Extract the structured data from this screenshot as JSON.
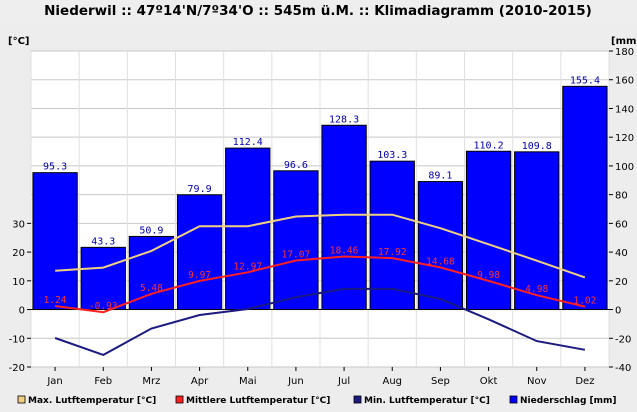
{
  "chart_data": {
    "type": "bar+line",
    "title": "Niederwil :: 47º14'N/7º34'O :: 545m ü.M. :: Klimadiagramm (2010-2015)",
    "left_unit": "[°C]",
    "right_unit": "[mm]",
    "categories": [
      "Jan",
      "Feb",
      "Mrz",
      "Apr",
      "Mai",
      "Jun",
      "Jul",
      "Aug",
      "Sep",
      "Okt",
      "Nov",
      "Dez"
    ],
    "left_axis": {
      "range": [
        -20,
        30
      ],
      "ticks": [
        -20,
        -10,
        0,
        10,
        20,
        30
      ]
    },
    "right_axis": {
      "range": [
        -40,
        180
      ],
      "ticks": [
        -40,
        -20,
        0,
        20,
        40,
        60,
        80,
        100,
        120,
        140,
        160,
        180
      ]
    },
    "grid": true,
    "series": [
      {
        "name": "Niederschlag [mm]",
        "type": "bar",
        "axis": "right",
        "color": "#0000ff",
        "values": [
          95.3,
          43.3,
          50.9,
          79.9,
          112.4,
          96.6,
          128.3,
          103.3,
          89.1,
          110.2,
          109.8,
          155.4
        ]
      },
      {
        "name": "Max. Lutftemperatur [°C]",
        "type": "line",
        "axis": "left",
        "color": "#f0d080",
        "values": [
          13.5,
          14.6,
          20.4,
          29.0,
          29.0,
          32.4,
          33.0,
          33.0,
          28.3,
          22.7,
          17.0,
          11.2
        ]
      },
      {
        "name": "Mittlere Lutftemperatur [°C]",
        "type": "line",
        "axis": "left",
        "color": "#ff2020",
        "values": [
          1.24,
          -0.93,
          5.48,
          9.97,
          12.97,
          17.07,
          18.46,
          17.92,
          14.68,
          9.98,
          4.98,
          1.02
        ],
        "labels": [
          "1.24",
          "-0.93",
          "5.48",
          "9.97",
          "12.97",
          "17.07",
          "18.46",
          "17.92",
          "14.68",
          "9.98",
          "4.98",
          "1.02"
        ]
      },
      {
        "name": "Min. Lutftemperatur [°C]",
        "type": "line",
        "axis": "left",
        "color": "#1a1a80",
        "values": [
          -9.9,
          -15.8,
          -6.6,
          -1.9,
          0.2,
          4.3,
          7.2,
          7.2,
          3.7,
          -3.4,
          -11.0,
          -14.0
        ]
      }
    ],
    "legend_position": "bottom"
  }
}
